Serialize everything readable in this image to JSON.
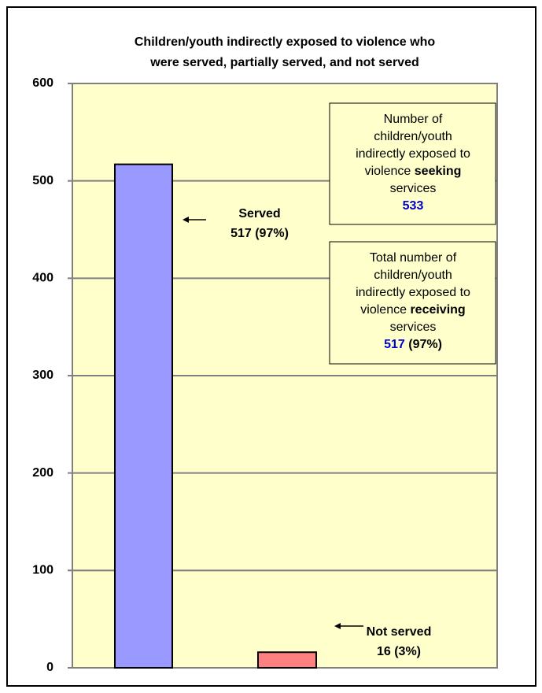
{
  "chart_data": {
    "type": "bar",
    "title": [
      "Children/youth  indirectly exposed to violence who",
      "were served, partially served, and not served"
    ],
    "categories": [
      null,
      null
    ],
    "labels": [
      "Served",
      "Not served"
    ],
    "values": [
      517,
      16
    ],
    "value_labels": [
      "517 (97%)",
      "16 (3%)"
    ],
    "colors": [
      "#9999ff",
      "#ff8080"
    ],
    "ylim": [
      0,
      600
    ],
    "yticks": [
      0,
      100,
      200,
      300,
      400,
      500,
      600
    ],
    "grid": true,
    "boxes": [
      {
        "lines": [
          {
            "text": "Number of"
          },
          {
            "text": "children/youth"
          },
          {
            "text": "indirectly exposed to"
          },
          {
            "text": "violence ",
            "bold": "seeking"
          },
          {
            "text": "services"
          }
        ],
        "value": 533
      },
      {
        "lines": [
          {
            "text": "Total number of"
          },
          {
            "text": "children/youth"
          },
          {
            "text": "indirectly exposed to"
          },
          {
            "text": "violence ",
            "bold": "receiving"
          },
          {
            "text": "services"
          }
        ],
        "value": 517,
        "value_note": "(97%)"
      }
    ]
  }
}
